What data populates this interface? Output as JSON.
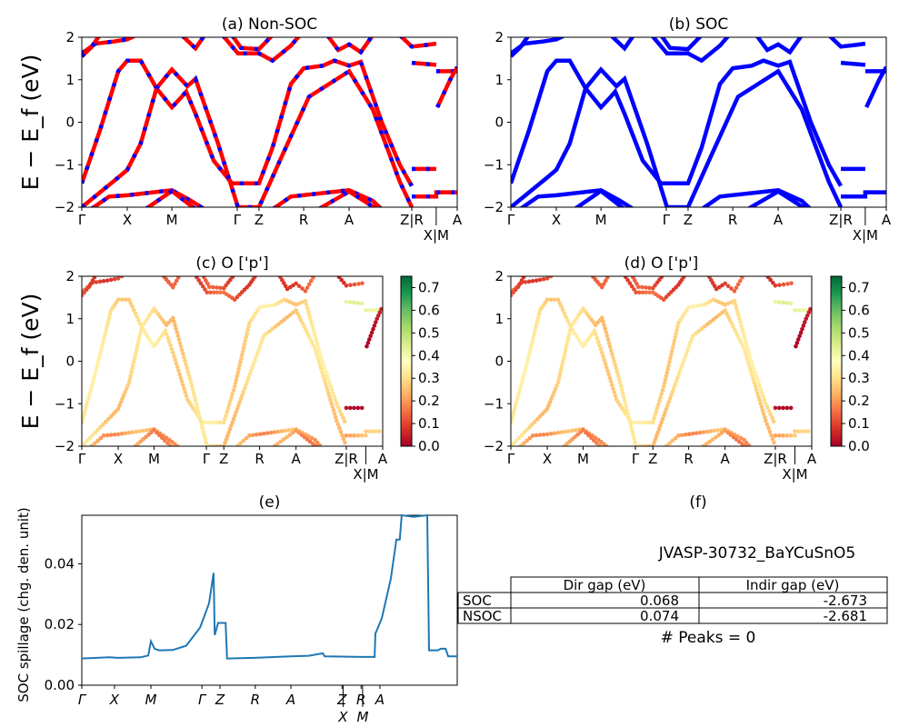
{
  "chart_data": {
    "type": "line",
    "k_tick_labels": [
      "Γ",
      "X",
      "M",
      "Γ",
      "Z",
      "R",
      "A",
      "Z|R",
      "X|M",
      "A"
    ],
    "k_ticks": [
      0,
      12.1,
      24,
      41.4,
      47.2,
      59.1,
      71.2,
      87.9,
      94.4,
      100
    ],
    "ylabel": "E − E_f (eV)",
    "ylim": [
      -2,
      2
    ],
    "yticks": [
      -2,
      -1,
      0,
      1,
      2
    ],
    "bands": [
      {
        "w": 0.3,
        "pts": [
          [
            0,
            -1.44
          ],
          [
            4.8,
            -0.2
          ],
          [
            9.7,
            1.2
          ],
          [
            12.1,
            1.45
          ],
          [
            15.7,
            1.45
          ],
          [
            19.9,
            0.8
          ],
          [
            24,
            0.35
          ],
          [
            26.6,
            0.6
          ],
          [
            27.8,
            0.72
          ],
          [
            30.3,
            0.2
          ],
          [
            35.1,
            -0.9
          ],
          [
            40,
            -1.44
          ],
          [
            47.2,
            -1.44
          ],
          [
            50.8,
            -0.6
          ],
          [
            55.7,
            0.9
          ],
          [
            59.1,
            1.27
          ],
          [
            64.2,
            1.33
          ],
          [
            67.3,
            1.45
          ],
          [
            71.2,
            1.33
          ],
          [
            74.3,
            1.42
          ],
          [
            79.9,
            0
          ],
          [
            84.7,
            -1.0
          ],
          [
            87.9,
            -1.5
          ]
        ]
      },
      {
        "w": 0.28,
        "pts": [
          [
            0,
            -2
          ],
          [
            9.7,
            -1.3
          ],
          [
            12.1,
            -1.12
          ],
          [
            15.7,
            -0.5
          ],
          [
            19.9,
            0.8
          ],
          [
            24,
            1.24
          ],
          [
            28.1,
            0.85
          ],
          [
            30.3,
            1.02
          ],
          [
            36.3,
            -0.5
          ],
          [
            41.6,
            -2
          ],
          [
            47.2,
            -2
          ],
          [
            53.3,
            -0.8
          ],
          [
            60.5,
            0.6
          ],
          [
            71.2,
            1.2
          ],
          [
            77.5,
            0.3
          ],
          [
            84.7,
            -1.4
          ],
          [
            87.9,
            -2
          ]
        ]
      },
      {
        "w": 0.12,
        "pts": [
          [
            0,
            1.62
          ],
          [
            3.6,
            1.85
          ],
          [
            8.5,
            1.9
          ],
          [
            12.1,
            1.95
          ],
          [
            14.5,
            2.05
          ]
        ]
      },
      {
        "w": 0.12,
        "pts": [
          [
            0,
            1.55
          ],
          [
            2.4,
            1.75
          ],
          [
            4.8,
            2.05
          ]
        ]
      },
      {
        "w": 0.1,
        "pts": [
          [
            26.6,
            2.05
          ],
          [
            30.3,
            1.74
          ],
          [
            32.7,
            2.05
          ]
        ]
      },
      {
        "w": 0.12,
        "pts": [
          [
            37.5,
            2.05
          ],
          [
            41.6,
            1.62
          ],
          [
            47.2,
            1.62
          ],
          [
            50.8,
            1.45
          ],
          [
            55.7,
            1.8
          ],
          [
            58.1,
            2.05
          ]
        ]
      },
      {
        "w": 0.1,
        "pts": [
          [
            40,
            2.05
          ],
          [
            42.4,
            1.75
          ],
          [
            47.2,
            1.72
          ],
          [
            50.8,
            2.05
          ]
        ]
      },
      {
        "w": 0.12,
        "pts": [
          [
            65.4,
            2.05
          ],
          [
            68.3,
            1.7
          ],
          [
            71.2,
            1.83
          ],
          [
            74.3,
            1.65
          ],
          [
            77.5,
            2.05
          ]
        ]
      },
      {
        "w": 0.1,
        "pts": [
          [
            84.7,
            2.05
          ],
          [
            87.9,
            1.78
          ],
          [
            92,
            1.82
          ],
          [
            94.4,
            1.85
          ]
        ]
      },
      {
        "w": 0.4,
        "pts": [
          [
            87.9,
            1.4
          ],
          [
            94.4,
            1.35
          ]
        ]
      },
      {
        "w": 0.45,
        "pts": [
          [
            94.4,
            1.2
          ],
          [
            100,
            1.2
          ]
        ]
      },
      {
        "w": 0.05,
        "pts": [
          [
            94.7,
            0.35
          ],
          [
            98.1,
            1.0
          ],
          [
            100,
            1.3
          ]
        ]
      },
      {
        "w": 0.05,
        "pts": [
          [
            87.9,
            -1.1
          ],
          [
            94.4,
            -1.1
          ]
        ]
      },
      {
        "w": 0.25,
        "pts": [
          [
            87.9,
            -1.75
          ],
          [
            94.4,
            -1.75
          ],
          [
            94.4,
            -1.65
          ],
          [
            100,
            -1.65
          ]
        ]
      },
      {
        "w": 0.22,
        "pts": [
          [
            2.4,
            -2.05
          ],
          [
            7.3,
            -1.75
          ],
          [
            12.1,
            -1.72
          ],
          [
            24,
            -1.6
          ],
          [
            29.1,
            -1.85
          ],
          [
            32.7,
            -2.05
          ]
        ]
      },
      {
        "w": 0.2,
        "pts": [
          [
            16.9,
            -2.05
          ],
          [
            24,
            -1.62
          ],
          [
            30.3,
            -2.05
          ]
        ]
      },
      {
        "w": 0.22,
        "pts": [
          [
            50.8,
            -2.05
          ],
          [
            55.7,
            -1.75
          ],
          [
            71.2,
            -1.6
          ],
          [
            77.5,
            -1.85
          ],
          [
            79.9,
            -2.05
          ]
        ]
      },
      {
        "w": 0.2,
        "pts": [
          [
            63,
            -2.05
          ],
          [
            71.2,
            -1.63
          ],
          [
            78.7,
            -2.05
          ]
        ]
      }
    ],
    "panels": [
      {
        "title": "(a) Non-SOC",
        "style": "red line with blue dashes"
      },
      {
        "title": "(b) SOC",
        "style": "blue line"
      },
      {
        "title": "(c)  O ['p']",
        "style": "scatter colored by projection"
      },
      {
        "title": "(d) O ['p']",
        "style": "scatter colored by projection"
      }
    ],
    "colorbar": {
      "ticks": [
        "0.0",
        "0.1",
        "0.2",
        "0.3",
        "0.4",
        "0.5",
        "0.6",
        "0.7"
      ],
      "range": [
        0,
        0.75
      ],
      "colormap": "RdYlGn"
    },
    "spillage": {
      "title": "(e)",
      "ylabel": "SOC spillage (chg. den. unit)",
      "ylim": [
        0,
        0.056
      ],
      "yticks": [
        "0.00",
        "0.02",
        "0.04"
      ],
      "k_tick_labels": [
        "Γ",
        "X",
        "M",
        "Γ",
        "Z",
        "R",
        "A",
        "Z",
        "X",
        "R",
        "M",
        "A"
      ],
      "k_ticks": [
        0,
        8.7,
        18.4,
        32,
        36.8,
        46.2,
        55.7,
        69.3,
        69.6,
        74.4,
        74.8,
        79.4
      ],
      "color": "#1f77b4",
      "pts": [
        [
          0,
          0.0088
        ],
        [
          7.3,
          0.0092
        ],
        [
          9.7,
          0.009
        ],
        [
          15.7,
          0.0092
        ],
        [
          17.7,
          0.0098
        ],
        [
          18.4,
          0.0145
        ],
        [
          19.4,
          0.012
        ],
        [
          20.6,
          0.0115
        ],
        [
          24.2,
          0.0116
        ],
        [
          27.8,
          0.013
        ],
        [
          31.5,
          0.019
        ],
        [
          33.9,
          0.027
        ],
        [
          35.1,
          0.037
        ],
        [
          35.4,
          0.0165
        ],
        [
          36.3,
          0.0205
        ],
        [
          38.3,
          0.0205
        ],
        [
          38.7,
          0.0088
        ],
        [
          46,
          0.009
        ],
        [
          55.7,
          0.0095
        ],
        [
          60.5,
          0.0097
        ],
        [
          64.2,
          0.0105
        ],
        [
          64.7,
          0.0095
        ],
        [
          75.1,
          0.0093
        ],
        [
          78,
          0.0093
        ],
        [
          78.2,
          0.017
        ],
        [
          79.9,
          0.022
        ],
        [
          82.3,
          0.035
        ],
        [
          83.8,
          0.048
        ],
        [
          84.7,
          0.048
        ],
        [
          85.2,
          0.056
        ],
        [
          88.4,
          0.0555
        ],
        [
          92,
          0.056
        ],
        [
          92.5,
          0.0115
        ],
        [
          94.9,
          0.0115
        ],
        [
          95.6,
          0.012
        ],
        [
          96.9,
          0.012
        ],
        [
          97.6,
          0.0095
        ],
        [
          100,
          0.0095
        ]
      ]
    },
    "table_panel": {
      "title": "(f)",
      "material": "JVASP-30732_BaYCuSnO5",
      "columns": [
        "",
        "Dir gap (eV)",
        "Indir gap (eV)"
      ],
      "rows": [
        [
          "SOC",
          "0.068",
          "-2.673"
        ],
        [
          "NSOC",
          "0.074",
          "-2.681"
        ]
      ],
      "peaks": "# Peaks = 0"
    }
  }
}
